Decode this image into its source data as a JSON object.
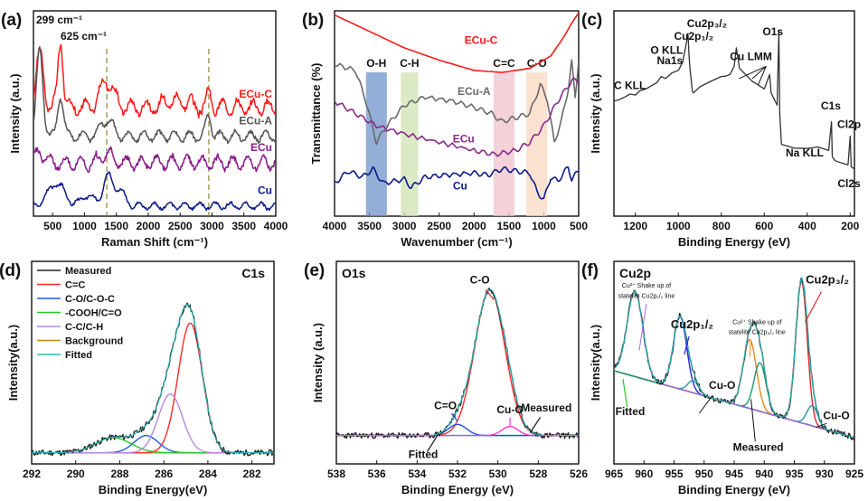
{
  "chart_data": [
    {
      "id": "a",
      "type": "line",
      "panel_label": "(a)",
      "xlabel": "Raman Shift (cm⁻¹)",
      "ylabel": "Intensity (a.u.)",
      "xlim": [
        200,
        4000
      ],
      "ylim": [
        0,
        10
      ],
      "xticks": [
        500,
        1000,
        1500,
        2000,
        2500,
        3000,
        3500,
        4000
      ],
      "vlines": [
        1350,
        2950
      ],
      "annotations": [
        {
          "text": "299 cm⁻¹",
          "x": 330,
          "y": 9.6
        },
        {
          "text": "625 cm⁻¹",
          "x": 720,
          "y": 8.9
        }
      ],
      "series": [
        {
          "name": "ECu-C",
          "color": "#ff1a1a",
          "base": 5.3,
          "noise": 0.45,
          "peaks": [
            [
              299,
              2.6,
              60
            ],
            [
              625,
              3.2,
              40
            ],
            [
              1350,
              1.3,
              100
            ],
            [
              2950,
              0.6,
              40
            ]
          ]
        },
        {
          "name": "ECu-A",
          "color": "#555555",
          "base": 3.9,
          "noise": 0.3,
          "peaks": [
            [
              299,
              4.2,
              50
            ],
            [
              625,
              2.0,
              45
            ],
            [
              1350,
              0.8,
              90
            ],
            [
              2950,
              1.0,
              40
            ]
          ]
        },
        {
          "name": "ECu",
          "color": "#8a1a8a",
          "base": 2.6,
          "noise": 0.4,
          "peaks": [
            [
              299,
              0.6,
              60
            ],
            [
              1350,
              0.4,
              90
            ]
          ]
        },
        {
          "name": "Cu",
          "color": "#0b1a8a",
          "base": 0.5,
          "noise": 0.2,
          "peaks": [
            [
              560,
              1.1,
              130
            ],
            [
              1050,
              0.5,
              90
            ],
            [
              1370,
              1.4,
              80
            ],
            [
              1560,
              0.7,
              80
            ]
          ]
        }
      ]
    },
    {
      "id": "b",
      "type": "line",
      "panel_label": "(b)",
      "xlabel": "Wavenumber (cm⁻¹)",
      "ylabel": "Transmittance (%)",
      "xlim": [
        4000,
        500
      ],
      "ylim": [
        0,
        10
      ],
      "xticks": [
        4000,
        3500,
        3000,
        2500,
        2000,
        1500,
        1000,
        500
      ],
      "bands": [
        {
          "label": "O-H",
          "from": 3550,
          "to": 3250,
          "color": "#6f93c9"
        },
        {
          "label": "C-H",
          "from": 3050,
          "to": 2800,
          "color": "#cfe3b2"
        },
        {
          "label": "C=C",
          "from": 1720,
          "to": 1420,
          "color": "#efc3cc"
        },
        {
          "label": "C-O",
          "from": 1250,
          "to": 950,
          "color": "#f9d7c0"
        }
      ],
      "series": [
        {
          "name": "ECu-C",
          "color": "#ff1a1a",
          "points": [
            [
              4000,
              9.8
            ],
            [
              3500,
              9.0
            ],
            [
              3000,
              8.2
            ],
            [
              2500,
              7.6
            ],
            [
              2000,
              7.1
            ],
            [
              1600,
              7.0
            ],
            [
              1200,
              7.2
            ],
            [
              900,
              7.8
            ],
            [
              700,
              8.8
            ],
            [
              600,
              9.4
            ],
            [
              500,
              9.9
            ]
          ]
        },
        {
          "name": "ECu-A",
          "color": "#6a6a6a",
          "points": [
            [
              4000,
              7.4
            ],
            [
              3700,
              7.1
            ],
            [
              3550,
              5.6
            ],
            [
              3400,
              3.6
            ],
            [
              3250,
              4.4
            ],
            [
              3000,
              5.4
            ],
            [
              2700,
              5.8
            ],
            [
              2300,
              5.6
            ],
            [
              2000,
              5.3
            ],
            [
              1750,
              5.0
            ],
            [
              1600,
              4.6
            ],
            [
              1400,
              4.8
            ],
            [
              1200,
              5.0
            ],
            [
              1050,
              6.4
            ],
            [
              950,
              5.7
            ],
            [
              850,
              3.6
            ],
            [
              750,
              4.6
            ],
            [
              650,
              6.2
            ],
            [
              600,
              7.5
            ],
            [
              550,
              5.8
            ],
            [
              500,
              7.6
            ]
          ]
        },
        {
          "name": "ECu",
          "color": "#8a2a8a",
          "points": [
            [
              4000,
              5.6
            ],
            [
              3700,
              5.0
            ],
            [
              3400,
              4.4
            ],
            [
              3000,
              4.0
            ],
            [
              2500,
              3.6
            ],
            [
              2000,
              3.2
            ],
            [
              1700,
              3.0
            ],
            [
              1400,
              3.2
            ],
            [
              1200,
              3.6
            ],
            [
              1000,
              4.4
            ],
            [
              800,
              5.6
            ],
            [
              600,
              6.6
            ],
            [
              500,
              6.6
            ]
          ]
        },
        {
          "name": "Cu",
          "color": "#0b1a8a",
          "points": [
            [
              4000,
              1.6
            ],
            [
              3800,
              2.2
            ],
            [
              3600,
              1.9
            ],
            [
              3450,
              2.3
            ],
            [
              3300,
              1.6
            ],
            [
              3000,
              1.8
            ],
            [
              2900,
              1.4
            ],
            [
              2700,
              1.9
            ],
            [
              2400,
              2.0
            ],
            [
              2000,
              2.1
            ],
            [
              1800,
              2.0
            ],
            [
              1600,
              2.3
            ],
            [
              1400,
              2.2
            ],
            [
              1200,
              2.1
            ],
            [
              1100,
              1.2
            ],
            [
              1000,
              0.8
            ],
            [
              900,
              1.9
            ],
            [
              800,
              1.7
            ],
            [
              650,
              2.4
            ],
            [
              600,
              1.8
            ],
            [
              500,
              2.2
            ]
          ]
        }
      ],
      "series_labels": [
        {
          "name": "ECu-C",
          "x": 1900,
          "y": 8.4
        },
        {
          "name": "ECu-A",
          "x": 2000,
          "y": 5.9
        },
        {
          "name": "ECu",
          "x": 2150,
          "y": 3.6
        },
        {
          "name": "Cu",
          "x": 2200,
          "y": 1.3
        }
      ]
    },
    {
      "id": "c",
      "type": "line",
      "panel_label": "(c)",
      "xlabel": "Binding Energy (eV)",
      "ylabel": "Intensity (a.u.)",
      "xlim": [
        1300,
        180
      ],
      "ylim": [
        0,
        10
      ],
      "xticks": [
        1200,
        1000,
        800,
        600,
        400,
        200
      ],
      "points": [
        [
          1300,
          5.6
        ],
        [
          1250,
          5.8
        ],
        [
          1200,
          5.9
        ],
        [
          1180,
          6.1
        ],
        [
          1150,
          6.2
        ],
        [
          1100,
          6.5
        ],
        [
          1080,
          6.8
        ],
        [
          1060,
          6.7
        ],
        [
          1000,
          7.1
        ],
        [
          980,
          7.5
        ],
        [
          965,
          8.3
        ],
        [
          955,
          8.9
        ],
        [
          950,
          7.8
        ],
        [
          945,
          7.1
        ],
        [
          935,
          6.1
        ],
        [
          930,
          6.0
        ],
        [
          900,
          6.3
        ],
        [
          800,
          6.8
        ],
        [
          760,
          6.9
        ],
        [
          740,
          7.3
        ],
        [
          730,
          8.2
        ],
        [
          715,
          7.2
        ],
        [
          600,
          6.2
        ],
        [
          575,
          6.9
        ],
        [
          568,
          6.0
        ],
        [
          540,
          5.4
        ],
        [
          532,
          9.0
        ],
        [
          528,
          5.0
        ],
        [
          520,
          3.5
        ],
        [
          400,
          3.3
        ],
        [
          300,
          3.2
        ],
        [
          287,
          4.6
        ],
        [
          283,
          2.9
        ],
        [
          270,
          2.7
        ],
        [
          210,
          2.5
        ],
        [
          200,
          3.9
        ],
        [
          195,
          2.4
        ],
        [
          180,
          2.3
        ]
      ],
      "peak_labels": [
        "C KLL",
        "Na1s",
        "O KLL",
        "Cu2p₁/₂",
        "Cu2p₃/₂",
        "Cu LMM",
        "O1s",
        "C1s",
        "Na KLL",
        "Cl2p",
        "Cl2s"
      ]
    },
    {
      "id": "d",
      "type": "line",
      "panel_label": "(d)",
      "title": "C1s",
      "xlabel": "Binding Energy(eV)",
      "ylabel": "Intensity(a.u.)",
      "xlim": [
        292,
        281
      ],
      "ylim": [
        0,
        10
      ],
      "xticks": [
        292,
        290,
        288,
        286,
        284,
        282
      ],
      "legend": [
        "Measured",
        "C=C",
        "C-O/C-O-C",
        "-COOH/C=O",
        "C-C/C-H",
        "Background",
        "Fitted"
      ],
      "components": [
        {
          "name": "C=C",
          "color": "#ff2a2a",
          "center": 284.8,
          "height": 6.4,
          "width": 0.55
        },
        {
          "name": "C-O/C-O-C",
          "color": "#1f5fdc",
          "center": 286.8,
          "height": 0.85,
          "width": 0.55
        },
        {
          "name": "-COOH/C=O",
          "color": "#28c828",
          "center": 288.3,
          "height": 0.75,
          "width": 0.8
        },
        {
          "name": "C-C/C-H",
          "color": "#b48ae0",
          "center": 285.7,
          "height": 2.9,
          "width": 0.55
        }
      ],
      "background": {
        "color": "#b38a1a",
        "level": 0.55
      }
    },
    {
      "id": "e",
      "type": "line",
      "panel_label": "(e)",
      "title": "O1s",
      "xlabel": "Binding Energy (eV)",
      "ylabel": "Intensity (a.u.)",
      "xlim": [
        538,
        526
      ],
      "ylim": [
        0,
        10
      ],
      "xticks": [
        538,
        536,
        534,
        532,
        530,
        528,
        526
      ],
      "components": [
        {
          "name": "C-O",
          "color": "#ff2a2a",
          "center": 530.4,
          "height": 7.2,
          "width": 0.75
        },
        {
          "name": "C=O",
          "color": "#1f4fdc",
          "center": 532.0,
          "height": 0.55,
          "width": 0.45
        },
        {
          "name": "Cu-O",
          "color": "#ff36d0",
          "center": 529.4,
          "height": 0.45,
          "width": 0.4
        }
      ],
      "background": {
        "color": "#29c8d8",
        "level": 1.4
      },
      "labels": [
        "C-O",
        "C=O",
        "Cu-O",
        "Measured",
        "Fitted"
      ]
    },
    {
      "id": "f",
      "type": "line",
      "panel_label": "(f)",
      "title": "Cu2p",
      "xlabel": "Binding Energy (eV)",
      "ylabel": "Intensity(a.u.)",
      "xlim": [
        965,
        925
      ],
      "ylim": [
        0,
        10
      ],
      "xticks": [
        965,
        960,
        955,
        950,
        945,
        940,
        935,
        930,
        925
      ],
      "components": [
        {
          "name": "Cu2p3/2",
          "color": "#e02a2a",
          "center": 933.8,
          "height": 7.0,
          "width": 0.95
        },
        {
          "name": "Cu-O",
          "color": "#2a9aa0",
          "center": 932.0,
          "height": 1.0,
          "width": 0.9
        },
        {
          "name": "Cu2p1/2",
          "color": "#2a2ad8",
          "center": 954.0,
          "height": 3.6,
          "width": 1.1
        },
        {
          "name": "Cu-O",
          "color": "#2a9aa0",
          "center": 951.8,
          "height": 0.6,
          "width": 0.9
        },
        {
          "name": "sat 3/2",
          "color": "#e08a1a",
          "center": 942.4,
          "height": 3.4,
          "width": 1.1
        },
        {
          "name": "sat 3/2b",
          "color": "#1a9a6a",
          "center": 940.7,
          "height": 2.4,
          "width": 1.0
        },
        {
          "name": "sat 1/2",
          "color": "#a36ad8",
          "center": 961.5,
          "height": 4.2,
          "width": 1.3
        }
      ],
      "background": {
        "color": "#7fa9d9",
        "from": 4.6,
        "to": 1.3
      },
      "labels": [
        "Cu2p",
        "Cu2p₃/₂",
        "Cu2p₁/₂",
        "Cu-O",
        "Cu-O",
        "Fitted",
        "Measured",
        "Cu²⁺ Shake up of statelite Cu2p₁/₂ line",
        "Cu²⁺ Shake up of statelite Cu2p₃/₂ line"
      ]
    }
  ]
}
